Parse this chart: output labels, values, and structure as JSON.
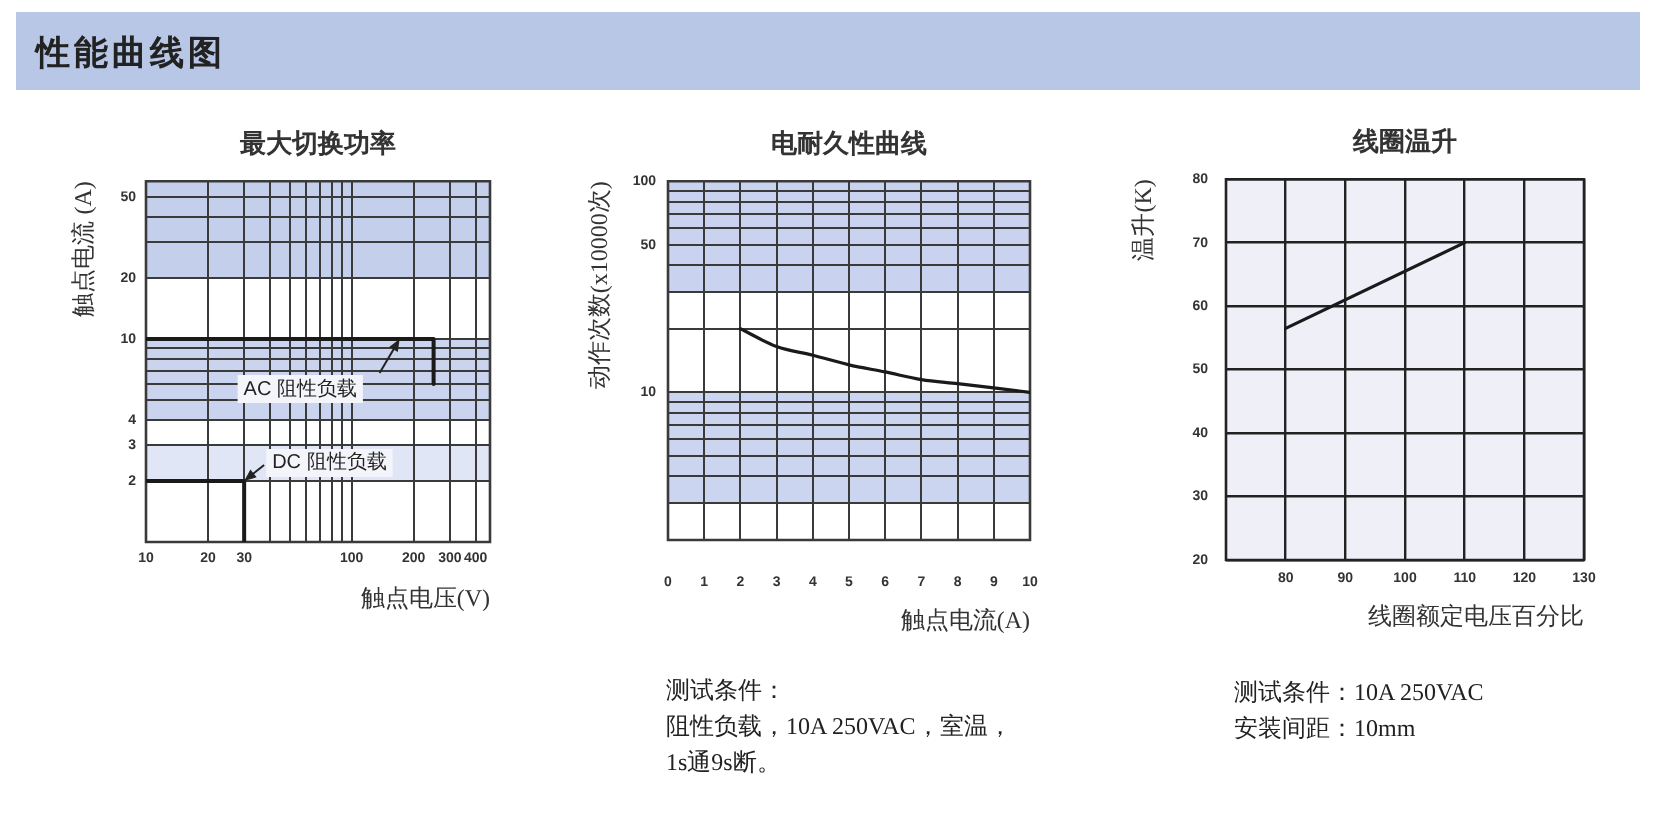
{
  "chart_data": [
    {
      "type": "other",
      "title": "性能曲线图"
    },
    {
      "type": "line",
      "title": "最大切换功率",
      "xlabel": "触点电压(V)",
      "ylabel": "触点电流 (A)",
      "log": "xy",
      "xlim": [
        10,
        470
      ],
      "ylim": [
        1,
        60
      ],
      "xticks": [
        10,
        20,
        30,
        {
          "value": 40,
          "label": null
        },
        {
          "value": 50,
          "label": null
        },
        {
          "value": 60,
          "label": null
        },
        {
          "value": 70,
          "label": null
        },
        {
          "value": 80,
          "label": null
        },
        {
          "value": 90,
          "label": null
        },
        100,
        200,
        300,
        400
      ],
      "yticks": [
        2,
        3,
        4,
        {
          "value": 5,
          "label": null
        },
        {
          "value": 6,
          "label": null
        },
        {
          "value": 7,
          "label": null
        },
        {
          "value": 8,
          "label": null
        },
        {
          "value": 9,
          "label": null
        },
        10,
        20,
        {
          "value": 30,
          "label": null
        },
        {
          "value": 40,
          "label": null
        },
        50
      ],
      "grid": true,
      "bands": [
        {
          "axis": "y",
          "from": 20,
          "to": 60,
          "color": "#c4cfeb"
        },
        {
          "axis": "y",
          "from": 4,
          "to": 10,
          "color": "#cad4ee"
        },
        {
          "axis": "y",
          "from": 2,
          "to": 3,
          "color": "#e0e6f5"
        }
      ],
      "series": [
        {
          "name": "AC 阻性负载",
          "color": "#1a1a1a",
          "x": [
            10,
            250,
            250
          ],
          "values": [
            10,
            10,
            6
          ]
        },
        {
          "name": "DC 阻性负载",
          "color": "#1a1a1a",
          "x": [
            10,
            30,
            30
          ],
          "values": [
            2,
            2,
            1
          ]
        }
      ]
    },
    {
      "type": "line",
      "title": "电耐久性曲线",
      "xlabel": "触点电流(A)",
      "ylabel": "动作次数(x10000次)",
      "log": "y",
      "xlim": [
        0,
        10
      ],
      "ylim": [
        2,
        100
      ],
      "xticks": [
        0,
        1,
        2,
        3,
        4,
        5,
        6,
        7,
        8,
        9,
        10
      ],
      "yticks": [
        {
          "value": 3,
          "label": null
        },
        {
          "value": 4,
          "label": null
        },
        {
          "value": 5,
          "label": null
        },
        {
          "value": 6,
          "label": null
        },
        {
          "value": 7,
          "label": null
        },
        {
          "value": 8,
          "label": null
        },
        {
          "value": 9,
          "label": null
        },
        10,
        {
          "value": 20,
          "label": null
        },
        {
          "value": 30,
          "label": null
        },
        {
          "value": 40,
          "label": null
        },
        50,
        {
          "value": 60,
          "label": null
        },
        {
          "value": 70,
          "label": null
        },
        {
          "value": 80,
          "label": null
        },
        {
          "value": 90,
          "label": null
        },
        100
      ],
      "grid": true,
      "bands": [
        {
          "axis": "y",
          "from": 30,
          "to": 100,
          "color": "#c9d2ee"
        },
        {
          "axis": "y",
          "from": 3,
          "to": 10,
          "color": "#ccd5ef"
        }
      ],
      "series": [
        {
          "color": "#1a1a1a",
          "x": [
            2,
            3,
            4,
            5,
            6,
            7,
            8,
            9,
            10
          ],
          "values": [
            20,
            16.5,
            15,
            13.5,
            12.5,
            11.5,
            11,
            10.5,
            10
          ]
        }
      ],
      "annotations": [
        "测试条件：",
        "阻性负载，10A 250VAC，室温，",
        "1s通9s断。"
      ]
    },
    {
      "type": "line",
      "title": "线圈温升",
      "xlabel": "线圈额定电压百分比",
      "ylabel": "温升(K)",
      "xlim": [
        70,
        130
      ],
      "ylim": [
        20,
        80
      ],
      "xticks": [
        80,
        90,
        100,
        110,
        120,
        130
      ],
      "yticks": [
        20,
        30,
        40,
        50,
        60,
        70,
        80
      ],
      "grid": true,
      "series": [
        {
          "color": "#1a1a1a",
          "x": [
            80,
            110
          ],
          "values": [
            56.5,
            70
          ]
        }
      ],
      "annotations": [
        "测试条件：10A 250VAC",
        "安装间距：10mm"
      ]
    }
  ]
}
